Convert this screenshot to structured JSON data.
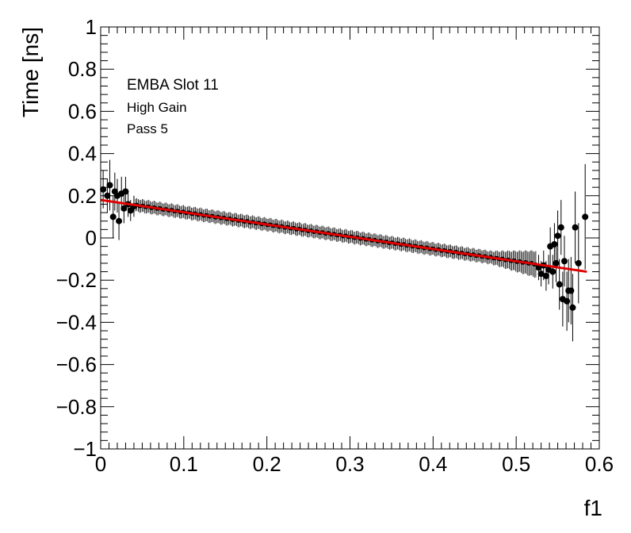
{
  "chart_data": {
    "type": "scatter",
    "xlabel": "f1",
    "ylabel": "Time [ns]",
    "xlim": [
      0,
      0.6
    ],
    "ylim": [
      -1,
      1
    ],
    "x_ticks": [
      0,
      0.1,
      0.2,
      0.3,
      0.4,
      0.5,
      0.6
    ],
    "x_tick_labels": [
      "0",
      "0.1",
      "0.2",
      "0.3",
      "0.4",
      "0.5",
      "0.6"
    ],
    "y_ticks": [
      -1,
      -0.8,
      -0.6,
      -0.4,
      -0.2,
      0,
      0.2,
      0.4,
      0.6,
      0.8,
      1
    ],
    "y_tick_labels": [
      "−1",
      "−0.8",
      "−0.6",
      "−0.4",
      "−0.2",
      "0",
      "0.2",
      "0.4",
      "0.6",
      "0.8",
      "1"
    ],
    "annotations": [
      "EMBA Slot 11",
      "High Gain",
      "Pass 5"
    ],
    "grid": false,
    "fit_line": {
      "color": "#e00000",
      "x": [
        0,
        0.585
      ],
      "y": [
        0.18,
        -0.16
      ]
    },
    "marker_color": "#000000",
    "sparse_points": [
      {
        "x": 0.003,
        "y": 0.23,
        "err": 0.09
      },
      {
        "x": 0.008,
        "y": 0.2,
        "err": 0.08
      },
      {
        "x": 0.011,
        "y": 0.25,
        "err": 0.12
      },
      {
        "x": 0.015,
        "y": 0.1,
        "err": 0.1
      },
      {
        "x": 0.017,
        "y": 0.22,
        "err": 0.09
      },
      {
        "x": 0.02,
        "y": 0.2,
        "err": 0.08
      },
      {
        "x": 0.022,
        "y": 0.08,
        "err": 0.09
      },
      {
        "x": 0.025,
        "y": 0.21,
        "err": 0.08
      },
      {
        "x": 0.028,
        "y": 0.14,
        "err": 0.07
      },
      {
        "x": 0.03,
        "y": 0.22,
        "err": 0.07
      },
      {
        "x": 0.033,
        "y": 0.16,
        "err": 0.06
      },
      {
        "x": 0.036,
        "y": 0.13,
        "err": 0.05
      },
      {
        "x": 0.04,
        "y": 0.15,
        "err": 0.05
      },
      {
        "x": 0.527,
        "y": -0.14,
        "err": 0.06
      },
      {
        "x": 0.53,
        "y": -0.17,
        "err": 0.06
      },
      {
        "x": 0.533,
        "y": -0.13,
        "err": 0.07
      },
      {
        "x": 0.536,
        "y": -0.18,
        "err": 0.07
      },
      {
        "x": 0.539,
        "y": -0.15,
        "err": 0.07
      },
      {
        "x": 0.541,
        "y": -0.04,
        "err": 0.09
      },
      {
        "x": 0.544,
        "y": -0.16,
        "err": 0.08
      },
      {
        "x": 0.546,
        "y": -0.03,
        "err": 0.1
      },
      {
        "x": 0.548,
        "y": -0.12,
        "err": 0.09
      },
      {
        "x": 0.55,
        "y": 0.01,
        "err": 0.12
      },
      {
        "x": 0.552,
        "y": -0.22,
        "err": 0.12
      },
      {
        "x": 0.554,
        "y": 0.05,
        "err": 0.13
      },
      {
        "x": 0.556,
        "y": -0.29,
        "err": 0.13
      },
      {
        "x": 0.558,
        "y": -0.11,
        "err": 0.12
      },
      {
        "x": 0.561,
        "y": -0.3,
        "err": 0.14
      },
      {
        "x": 0.563,
        "y": -0.25,
        "err": 0.15
      },
      {
        "x": 0.566,
        "y": -0.25,
        "err": 0.16
      },
      {
        "x": 0.568,
        "y": -0.33,
        "err": 0.16
      },
      {
        "x": 0.571,
        "y": 0.05,
        "err": 0.17
      },
      {
        "x": 0.575,
        "y": -0.12,
        "err": 0.19
      },
      {
        "x": 0.583,
        "y": 0.1,
        "err": 0.25
      }
    ]
  }
}
